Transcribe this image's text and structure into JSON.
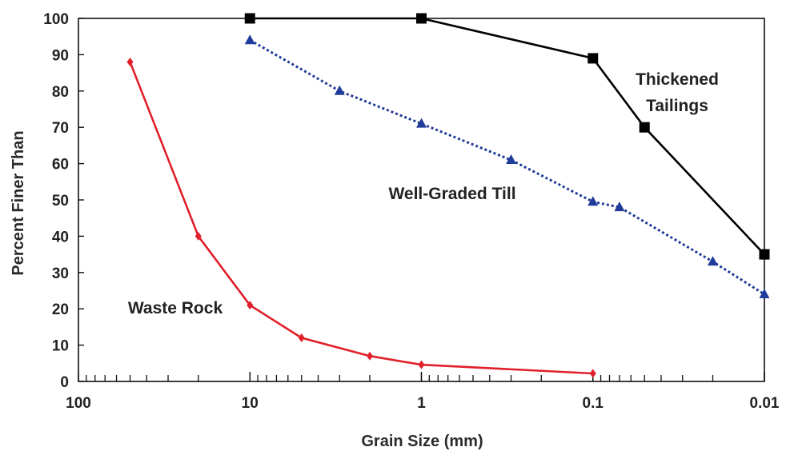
{
  "chart_data": {
    "type": "line",
    "xlabel": "Grain Size (mm)",
    "ylabel": "Percent Finer Than",
    "x_scale": "log",
    "x_reversed": true,
    "xlim": [
      100,
      0.01
    ],
    "ylim": [
      0,
      100
    ],
    "x_ticks": [
      100,
      10,
      1,
      0.1,
      0.01
    ],
    "x_tick_labels": [
      "100",
      "10",
      "1",
      "0.1",
      "0.01"
    ],
    "y_ticks": [
      0,
      10,
      20,
      30,
      40,
      50,
      60,
      70,
      80,
      90,
      100
    ],
    "y_tick_labels": [
      "0",
      "10",
      "20",
      "30",
      "40",
      "50",
      "60",
      "70",
      "80",
      "90",
      "100"
    ],
    "grid": false,
    "legend": "none",
    "series": [
      {
        "name": "Thickened Tailings",
        "color": "#000000",
        "marker": "square",
        "line_style": "solid",
        "x": [
          10,
          1,
          0.1,
          0.05,
          0.01
        ],
        "y": [
          100,
          100,
          89,
          70,
          35
        ]
      },
      {
        "name": "Well-Graded Till",
        "color": "#1f3c9a",
        "marker": "triangle",
        "line_style": "dotted",
        "x": [
          10,
          3,
          1,
          0.3,
          0.1,
          0.07,
          0.02,
          0.01
        ],
        "y": [
          94,
          80,
          71,
          61,
          49.5,
          48,
          33,
          24
        ]
      },
      {
        "name": "Waste Rock",
        "color": "#e0202a",
        "marker": "diamond",
        "line_style": "solid",
        "x": [
          50,
          20,
          10,
          5,
          2,
          1,
          0.1
        ],
        "y": [
          88,
          40,
          21,
          12,
          7,
          4.6,
          2.2
        ]
      }
    ],
    "annotations": [
      {
        "lines": [
          "Thickened",
          "Tailings"
        ]
      },
      {
        "lines": [
          "Well-Graded Till"
        ]
      },
      {
        "lines": [
          "Waste Rock"
        ]
      }
    ]
  }
}
